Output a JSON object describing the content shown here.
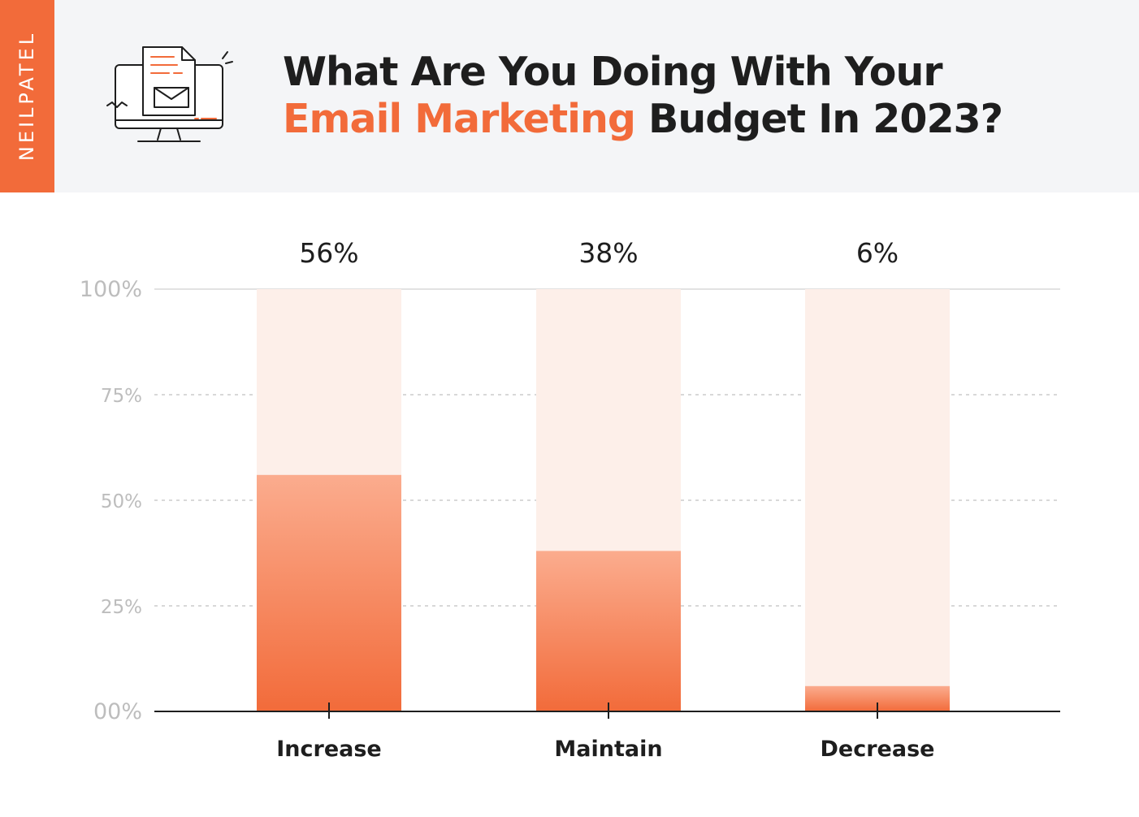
{
  "brand": "NEILPATEL",
  "title": {
    "line1": "What Are You Doing With Your",
    "line2_accent": "Email Marketing",
    "line2_rest": " Budget In 2023?"
  },
  "icons": {
    "header": "computer-email-icon"
  },
  "colors": {
    "accent": "#f26b3a",
    "bar_light": "#fbac8e",
    "bar_track": "#fdefe9",
    "header_bg": "#f4f5f7",
    "text": "#1e1e1e",
    "axis_label": "#bdbdbd"
  },
  "chart_data": {
    "type": "bar",
    "categories": [
      "Increase",
      "Maintain",
      "Decrease"
    ],
    "values": [
      56,
      38,
      6
    ],
    "value_labels": [
      "56%",
      "38%",
      "6%"
    ],
    "ylim": [
      0,
      100
    ],
    "yticks": [
      0,
      25,
      50,
      75,
      100
    ],
    "ytick_labels": [
      "00%",
      "25%",
      "50%",
      "75%",
      "100%"
    ],
    "grid": "dashed horizontal",
    "legend": "none"
  }
}
